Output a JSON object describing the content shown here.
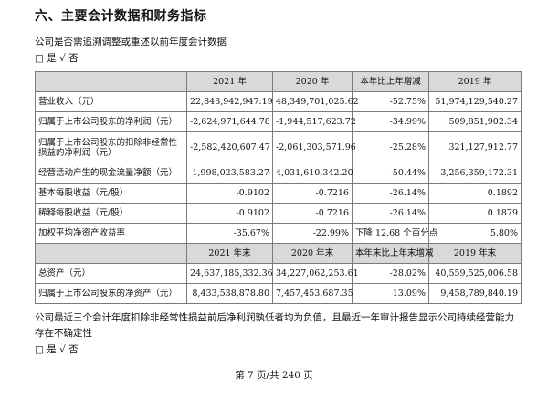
{
  "heading": "六、主要会计数据和财务指标",
  "restate_question": "公司是否需追溯调整或重述以前年度会计数据",
  "restate_answer": "□ 是 √ 否",
  "table": {
    "header1": [
      "",
      "2021 年",
      "2020 年",
      "本年比上年增减",
      "2019 年"
    ],
    "rows1": [
      [
        "营业收入（元）",
        "22,843,942,947.19",
        "48,349,701,025.62",
        "-52.75%",
        "51,974,129,540.27"
      ],
      [
        "归属于上市公司股东的净利润（元）",
        "-2,624,971,644.78",
        "-1,944,517,623.72",
        "-34.99%",
        "509,851,902.34"
      ],
      [
        "归属于上市公司股东的扣除非经常性损益的净利润（元）",
        "-2,582,420,607.47",
        "-2,061,303,571.96",
        "-25.28%",
        "321,127,912.77"
      ],
      [
        "经营活动产生的现金流量净额（元）",
        "1,998,023,583.27",
        "4,031,610,342.20",
        "-50.44%",
        "3,256,359,172.31"
      ],
      [
        "基本每股收益（元/股）",
        "-0.9102",
        "-0.7216",
        "-26.14%",
        "0.1892"
      ],
      [
        "稀释每股收益（元/股）",
        "-0.9102",
        "-0.7216",
        "-26.14%",
        "0.1879"
      ],
      [
        "加权平均净资产收益率",
        "-35.67%",
        "-22.99%",
        "下降 12.68 个百分点",
        "5.80%"
      ]
    ],
    "header2": [
      "",
      "2021 年末",
      "2020 年末",
      "本年末比上年末增减",
      "2019 年末"
    ],
    "rows2": [
      [
        "总资产（元）",
        "24,637,185,332.36",
        "34,227,062,253.61",
        "-28.02%",
        "40,559,525,006.58"
      ],
      [
        "归属于上市公司股东的净资产（元）",
        "8,433,538,878.80",
        "7,457,453,687.35",
        "13.09%",
        "9,458,789,840.19"
      ]
    ]
  },
  "footnote": "公司最近三个会计年度扣除非经常性损益前后净利润孰低者均为负值，且最近一年审计报告显示公司持续经营能力存在不确定性",
  "footnote_answer": "□ 是 √ 否",
  "page_number": "第 7 页/共 240 页"
}
